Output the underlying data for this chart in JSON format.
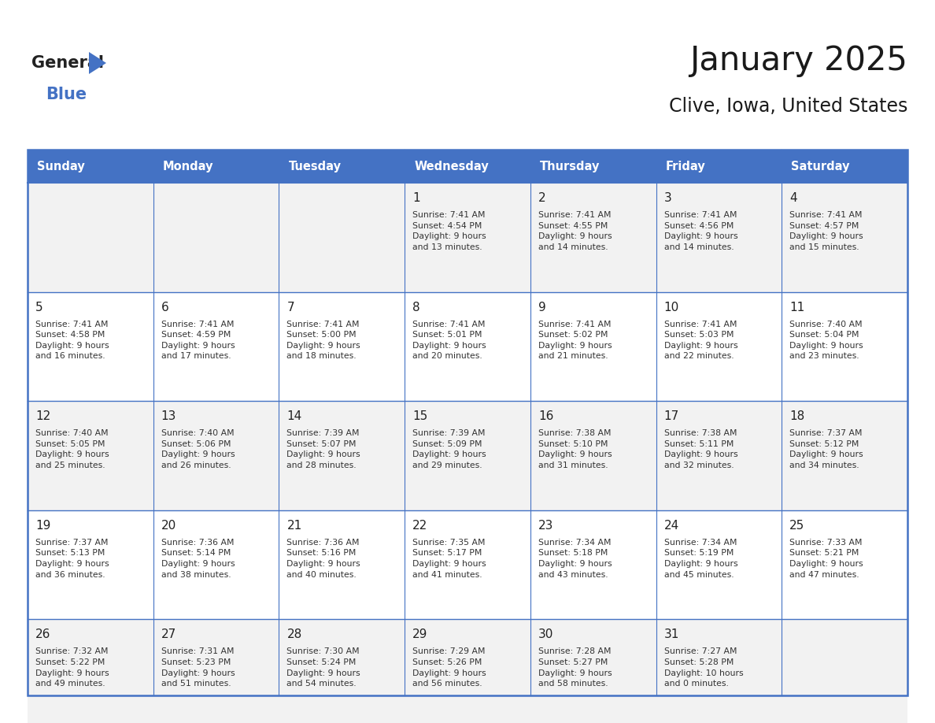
{
  "title": "January 2025",
  "subtitle": "Clive, Iowa, United States",
  "header_bg": "#4472C4",
  "header_text_color": "#FFFFFF",
  "cell_bg_odd": "#F2F2F2",
  "cell_bg_even": "#FFFFFF",
  "border_color": "#4472C4",
  "text_color": "#333333",
  "days_of_week": [
    "Sunday",
    "Monday",
    "Tuesday",
    "Wednesday",
    "Thursday",
    "Friday",
    "Saturday"
  ],
  "weeks": [
    [
      {
        "day": "",
        "info": ""
      },
      {
        "day": "",
        "info": ""
      },
      {
        "day": "",
        "info": ""
      },
      {
        "day": "1",
        "info": "Sunrise: 7:41 AM\nSunset: 4:54 PM\nDaylight: 9 hours\nand 13 minutes."
      },
      {
        "day": "2",
        "info": "Sunrise: 7:41 AM\nSunset: 4:55 PM\nDaylight: 9 hours\nand 14 minutes."
      },
      {
        "day": "3",
        "info": "Sunrise: 7:41 AM\nSunset: 4:56 PM\nDaylight: 9 hours\nand 14 minutes."
      },
      {
        "day": "4",
        "info": "Sunrise: 7:41 AM\nSunset: 4:57 PM\nDaylight: 9 hours\nand 15 minutes."
      }
    ],
    [
      {
        "day": "5",
        "info": "Sunrise: 7:41 AM\nSunset: 4:58 PM\nDaylight: 9 hours\nand 16 minutes."
      },
      {
        "day": "6",
        "info": "Sunrise: 7:41 AM\nSunset: 4:59 PM\nDaylight: 9 hours\nand 17 minutes."
      },
      {
        "day": "7",
        "info": "Sunrise: 7:41 AM\nSunset: 5:00 PM\nDaylight: 9 hours\nand 18 minutes."
      },
      {
        "day": "8",
        "info": "Sunrise: 7:41 AM\nSunset: 5:01 PM\nDaylight: 9 hours\nand 20 minutes."
      },
      {
        "day": "9",
        "info": "Sunrise: 7:41 AM\nSunset: 5:02 PM\nDaylight: 9 hours\nand 21 minutes."
      },
      {
        "day": "10",
        "info": "Sunrise: 7:41 AM\nSunset: 5:03 PM\nDaylight: 9 hours\nand 22 minutes."
      },
      {
        "day": "11",
        "info": "Sunrise: 7:40 AM\nSunset: 5:04 PM\nDaylight: 9 hours\nand 23 minutes."
      }
    ],
    [
      {
        "day": "12",
        "info": "Sunrise: 7:40 AM\nSunset: 5:05 PM\nDaylight: 9 hours\nand 25 minutes."
      },
      {
        "day": "13",
        "info": "Sunrise: 7:40 AM\nSunset: 5:06 PM\nDaylight: 9 hours\nand 26 minutes."
      },
      {
        "day": "14",
        "info": "Sunrise: 7:39 AM\nSunset: 5:07 PM\nDaylight: 9 hours\nand 28 minutes."
      },
      {
        "day": "15",
        "info": "Sunrise: 7:39 AM\nSunset: 5:09 PM\nDaylight: 9 hours\nand 29 minutes."
      },
      {
        "day": "16",
        "info": "Sunrise: 7:38 AM\nSunset: 5:10 PM\nDaylight: 9 hours\nand 31 minutes."
      },
      {
        "day": "17",
        "info": "Sunrise: 7:38 AM\nSunset: 5:11 PM\nDaylight: 9 hours\nand 32 minutes."
      },
      {
        "day": "18",
        "info": "Sunrise: 7:37 AM\nSunset: 5:12 PM\nDaylight: 9 hours\nand 34 minutes."
      }
    ],
    [
      {
        "day": "19",
        "info": "Sunrise: 7:37 AM\nSunset: 5:13 PM\nDaylight: 9 hours\nand 36 minutes."
      },
      {
        "day": "20",
        "info": "Sunrise: 7:36 AM\nSunset: 5:14 PM\nDaylight: 9 hours\nand 38 minutes."
      },
      {
        "day": "21",
        "info": "Sunrise: 7:36 AM\nSunset: 5:16 PM\nDaylight: 9 hours\nand 40 minutes."
      },
      {
        "day": "22",
        "info": "Sunrise: 7:35 AM\nSunset: 5:17 PM\nDaylight: 9 hours\nand 41 minutes."
      },
      {
        "day": "23",
        "info": "Sunrise: 7:34 AM\nSunset: 5:18 PM\nDaylight: 9 hours\nand 43 minutes."
      },
      {
        "day": "24",
        "info": "Sunrise: 7:34 AM\nSunset: 5:19 PM\nDaylight: 9 hours\nand 45 minutes."
      },
      {
        "day": "25",
        "info": "Sunrise: 7:33 AM\nSunset: 5:21 PM\nDaylight: 9 hours\nand 47 minutes."
      }
    ],
    [
      {
        "day": "26",
        "info": "Sunrise: 7:32 AM\nSunset: 5:22 PM\nDaylight: 9 hours\nand 49 minutes."
      },
      {
        "day": "27",
        "info": "Sunrise: 7:31 AM\nSunset: 5:23 PM\nDaylight: 9 hours\nand 51 minutes."
      },
      {
        "day": "28",
        "info": "Sunrise: 7:30 AM\nSunset: 5:24 PM\nDaylight: 9 hours\nand 54 minutes."
      },
      {
        "day": "29",
        "info": "Sunrise: 7:29 AM\nSunset: 5:26 PM\nDaylight: 9 hours\nand 56 minutes."
      },
      {
        "day": "30",
        "info": "Sunrise: 7:28 AM\nSunset: 5:27 PM\nDaylight: 9 hours\nand 58 minutes."
      },
      {
        "day": "31",
        "info": "Sunrise: 7:27 AM\nSunset: 5:28 PM\nDaylight: 10 hours\nand 0 minutes."
      },
      {
        "day": "",
        "info": ""
      }
    ]
  ]
}
